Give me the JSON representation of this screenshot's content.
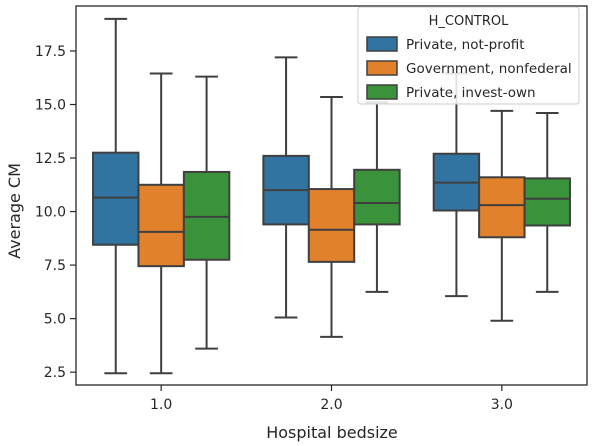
{
  "chart_data": {
    "type": "box",
    "xlabel": "Hospital bedsize",
    "ylabel": "Average CM",
    "categories": [
      "1.0",
      "2.0",
      "3.0"
    ],
    "ylim": [
      1.9,
      19.6
    ],
    "yticks": [
      2.5,
      5.0,
      7.5,
      10.0,
      12.5,
      15.0,
      17.5
    ],
    "ytick_labels": [
      "2.5",
      "5.0",
      "7.5",
      "10.0",
      "12.5",
      "15.0",
      "17.5"
    ],
    "grid": false,
    "legend": {
      "title": "H_CONTROL",
      "position": "top-right"
    },
    "series": [
      {
        "name": "Private, not-profit",
        "color": "#3274a1",
        "boxes": [
          {
            "min": 2.45,
            "q1": 8.45,
            "median": 10.65,
            "q3": 12.75,
            "max": 19.0
          },
          {
            "min": 5.05,
            "q1": 9.4,
            "median": 11.0,
            "q3": 12.6,
            "max": 17.2
          },
          {
            "min": 6.05,
            "q1": 10.05,
            "median": 11.35,
            "q3": 12.7,
            "max": 16.45
          }
        ]
      },
      {
        "name": "Government, nonfederal",
        "color": "#e1812c",
        "boxes": [
          {
            "min": 2.45,
            "q1": 7.45,
            "median": 9.05,
            "q3": 11.25,
            "max": 16.45
          },
          {
            "min": 4.15,
            "q1": 7.65,
            "median": 9.15,
            "q3": 11.05,
            "max": 15.35
          },
          {
            "min": 4.9,
            "q1": 8.8,
            "median": 10.3,
            "q3": 11.6,
            "max": 14.7
          }
        ]
      },
      {
        "name": "Private, invest-own",
        "color": "#3a923a",
        "boxes": [
          {
            "min": 3.6,
            "q1": 7.75,
            "median": 9.75,
            "q3": 11.85,
            "max": 16.3
          },
          {
            "min": 6.25,
            "q1": 9.4,
            "median": 10.4,
            "q3": 11.95,
            "max": 15.1
          },
          {
            "min": 6.25,
            "q1": 9.35,
            "median": 10.6,
            "q3": 11.55,
            "max": 14.6
          }
        ]
      }
    ]
  }
}
